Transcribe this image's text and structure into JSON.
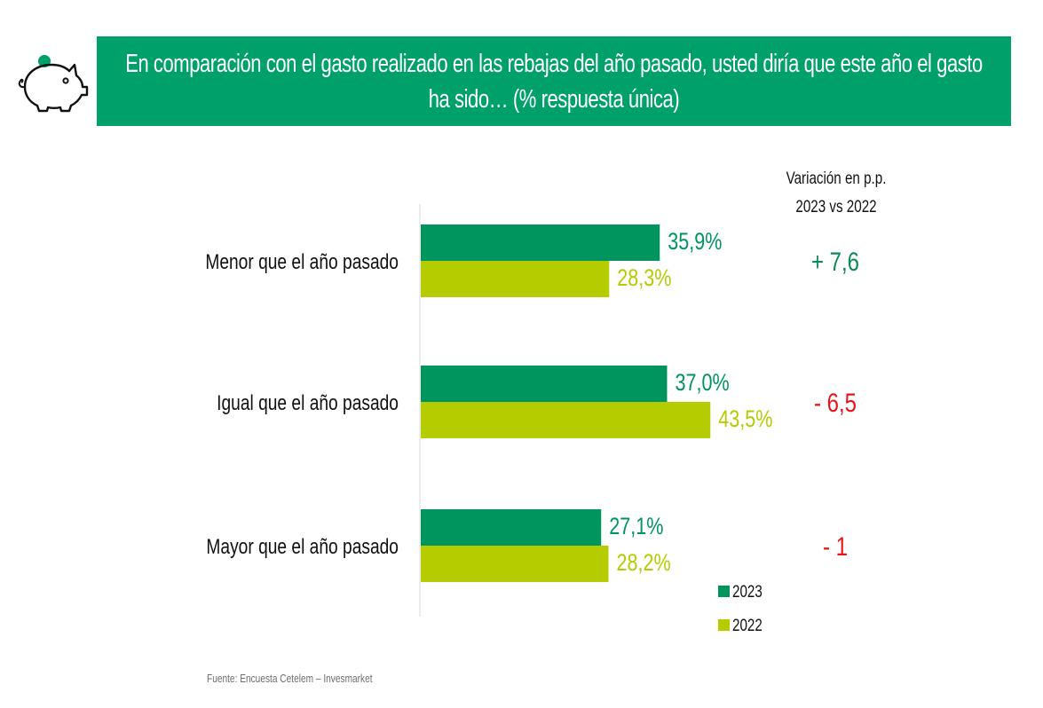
{
  "header": {
    "title": "En comparación con el gasto realizado en las rebajas del año pasado, usted diría que este año el gasto ha sido… (% respuesta única)",
    "icon": "piggy-bank-icon"
  },
  "chart_data": {
    "type": "bar",
    "orientation": "horizontal",
    "categories": [
      "Menor que el año pasado",
      "Igual que el año pasado",
      "Mayor que el año pasado"
    ],
    "series": [
      {
        "name": "2023",
        "color": "#00945f",
        "values": [
          35.9,
          37.0,
          27.1
        ],
        "labels": [
          "35,9%",
          "37,0%",
          "27,1%"
        ]
      },
      {
        "name": "2022",
        "color": "#b5cc00",
        "values": [
          28.3,
          43.5,
          28.2
        ],
        "labels": [
          "28,3%",
          "43,5%",
          "28,2%"
        ]
      }
    ],
    "xlim": [
      0,
      100
    ],
    "variation": {
      "title_line1": "Variación en p.p.",
      "title_line2": "2023 vs 2022",
      "values": [
        "+ 7,6",
        "- 6,5",
        "- 1"
      ],
      "colors": [
        "#0a8a55",
        "#e8141b",
        "#e8141b"
      ]
    },
    "legend": [
      "2023",
      "2022"
    ]
  },
  "footer": {
    "source": "Fuente: Encuesta Cetelem – Invesmarket"
  }
}
